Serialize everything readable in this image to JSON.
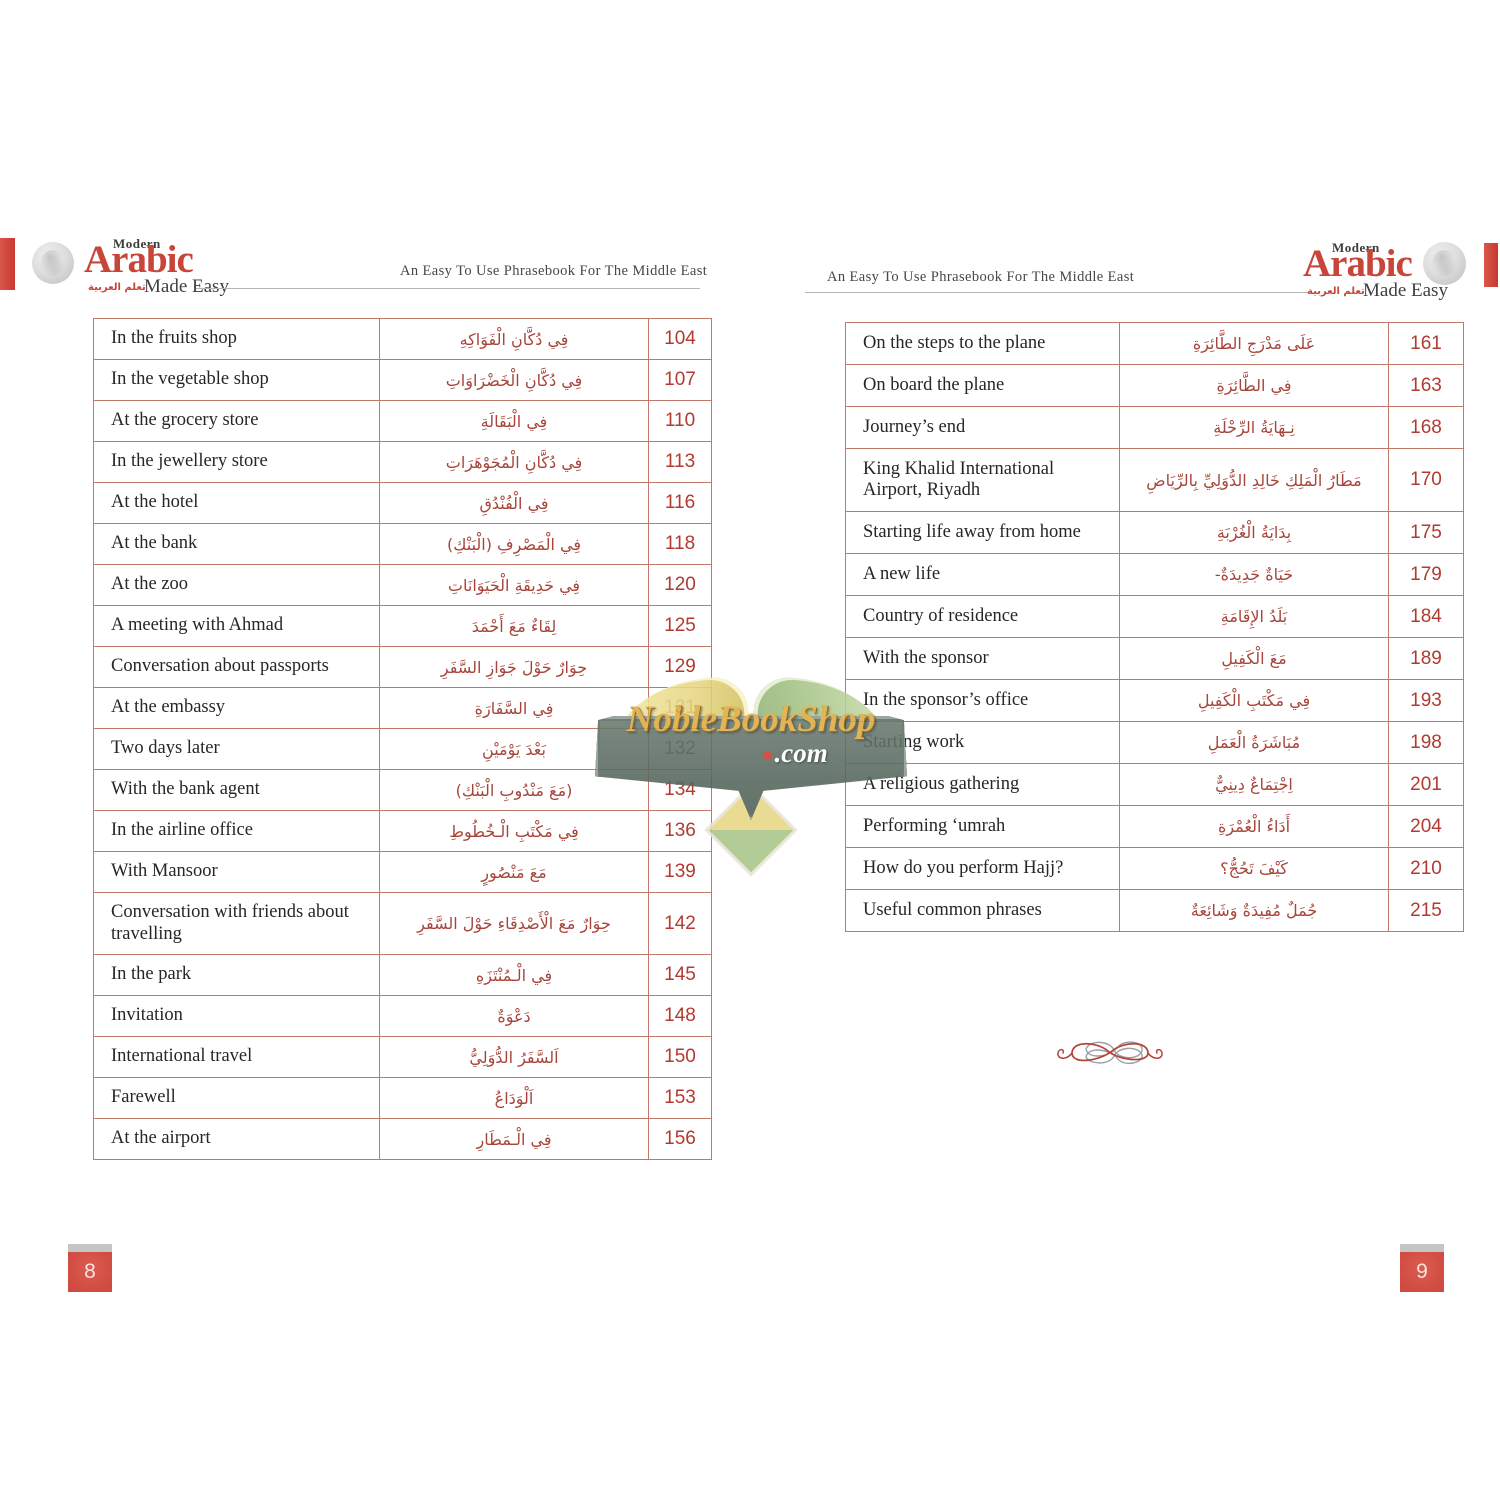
{
  "brand": {
    "modern": "Modern",
    "arabic": "Arabic",
    "arabic_sub": "تعلم العربية",
    "made_easy": "Made Easy",
    "tagline": "An Easy To Use Phrasebook For The Middle East"
  },
  "watermark": {
    "name": "NobleBookShop",
    "tld": ".com"
  },
  "pages": {
    "left": {
      "page_number": "8",
      "rows": [
        {
          "en": "In the fruits shop",
          "ar": "فِي دُكَّانِ الْفَوَاكِهِ",
          "page": "104"
        },
        {
          "en": "In the vegetable shop",
          "ar": "فِي دُكَّانِ الْخَضْرَاوَاتِ",
          "page": "107"
        },
        {
          "en": "At the grocery store",
          "ar": "فِي الْبَقَالَةِ",
          "page": "110"
        },
        {
          "en": "In the jewellery store",
          "ar": "فِي دُكَّانِ الْمُجَوْهَرَاتِ",
          "page": "113"
        },
        {
          "en": "At the hotel",
          "ar": "فِي الْفُنْدُقِ",
          "page": "116"
        },
        {
          "en": "At the bank",
          "ar": "فِي الْمَصْرِفِ (الْبَنْكِ)",
          "page": "118"
        },
        {
          "en": "At the zoo",
          "ar": "فِي حَدِيقَةِ الْحَيَوَانَاتِ",
          "page": "120"
        },
        {
          "en": "A meeting with Ahmad",
          "ar": "لِقَاءٌ مَعَ أَحْمَدَ",
          "page": "125"
        },
        {
          "en": "Conversation about passports",
          "ar": "حِوَارٌ حَوْلَ جَوَازِ السَّفَرِ",
          "page": "129"
        },
        {
          "en": "At the embassy",
          "ar": "فِي السَّفَارَةِ",
          "page": "131"
        },
        {
          "en": "Two days later",
          "ar": "بَعْدَ يَوْمَيْنِ",
          "page": "132"
        },
        {
          "en": "With the bank agent",
          "ar": "(مَعَ مَنْدُوبِ الْبَنْكِ)",
          "page": "134"
        },
        {
          "en": "In the airline office",
          "ar": "فِي مَكْتَبِ الْـخُطُوطِ",
          "page": "136"
        },
        {
          "en": "With Mansoor",
          "ar": "مَعَ مَنْصُورٍ",
          "page": "139"
        },
        {
          "en": "Conversation with friends about travelling",
          "ar": "حِوَارٌ مَعَ الْأَصْدِقَاءِ حَوْلَ السَّفَرِ",
          "page": "142"
        },
        {
          "en": "In the park",
          "ar": "فِي الْـمُنْتَزَهِ",
          "page": "145"
        },
        {
          "en": "Invitation",
          "ar": "دَعْوَةٌ",
          "page": "148"
        },
        {
          "en": "International travel",
          "ar": "اَلسَّفَرُ الدُّوَلِيُّ",
          "page": "150"
        },
        {
          "en": "Farewell",
          "ar": "اَلْوَدَاعُ",
          "page": "153"
        },
        {
          "en": "At the airport",
          "ar": "فِي الْـمَطَارِ",
          "page": "156"
        }
      ]
    },
    "right": {
      "page_number": "9",
      "rows": [
        {
          "en": "On the steps to the plane",
          "ar": "عَلَى مَدْرَجِ الطَّائِرَةِ",
          "page": "161"
        },
        {
          "en": "On board the plane",
          "ar": "فِي الطَّائِرَةِ",
          "page": "163"
        },
        {
          "en": "Journey’s end",
          "ar": "نِـهَايَةُ الرِّحْلَةِ",
          "page": "168"
        },
        {
          "en": "King Khalid International Airport, Riyadh",
          "ar": "مَطَارُ الْمَلِكِ خَالِدِ الدُّوَلِيِّ بِالرِّيَاضِ",
          "page": "170"
        },
        {
          "en": "Starting life away from home",
          "ar": "بِدَايَةُ الْغُرْبَةِ",
          "page": "175"
        },
        {
          "en": "A new life",
          "ar": "حَيَاةٌ جَدِيدَةٌ-",
          "page": "179"
        },
        {
          "en": "Country of residence",
          "ar": "بَلَدُ الإِقَامَةِ",
          "page": "184"
        },
        {
          "en": "With the sponsor",
          "ar": "مَعَ الْكَفِيلِ",
          "page": "189"
        },
        {
          "en": "In the sponsor’s office",
          "ar": "فِي مَكْتَبِ الْكَفِيلِ",
          "page": "193"
        },
        {
          "en": "Starting work",
          "ar": "مُبَاشَرَةُ الْعَمَلِ",
          "page": "198"
        },
        {
          "en": "A religious gathering",
          "ar": "اِجْتِمَاعٌ دِينِيٌّ",
          "page": "201"
        },
        {
          "en": "Performing ‘umrah",
          "ar": "أَدَاءُ الْعُمْرَةِ",
          "page": "204"
        },
        {
          "en": "How do you perform Hajj?",
          "ar": "كَيْفَ تَحُجُّ؟",
          "page": "210"
        },
        {
          "en": "Useful common phrases",
          "ar": "جُمَلٌ مُفِيدَةٌ وَشَائِعَةٌ",
          "page": "215"
        }
      ]
    }
  },
  "colors": {
    "accent_red": "#c8453a",
    "table_border": "#c1766a",
    "number_red": "#b23a30",
    "arabic_text": "#a8453b",
    "watermark_gold": "#ddaa3f",
    "watermark_banner": "#5c6d63"
  }
}
